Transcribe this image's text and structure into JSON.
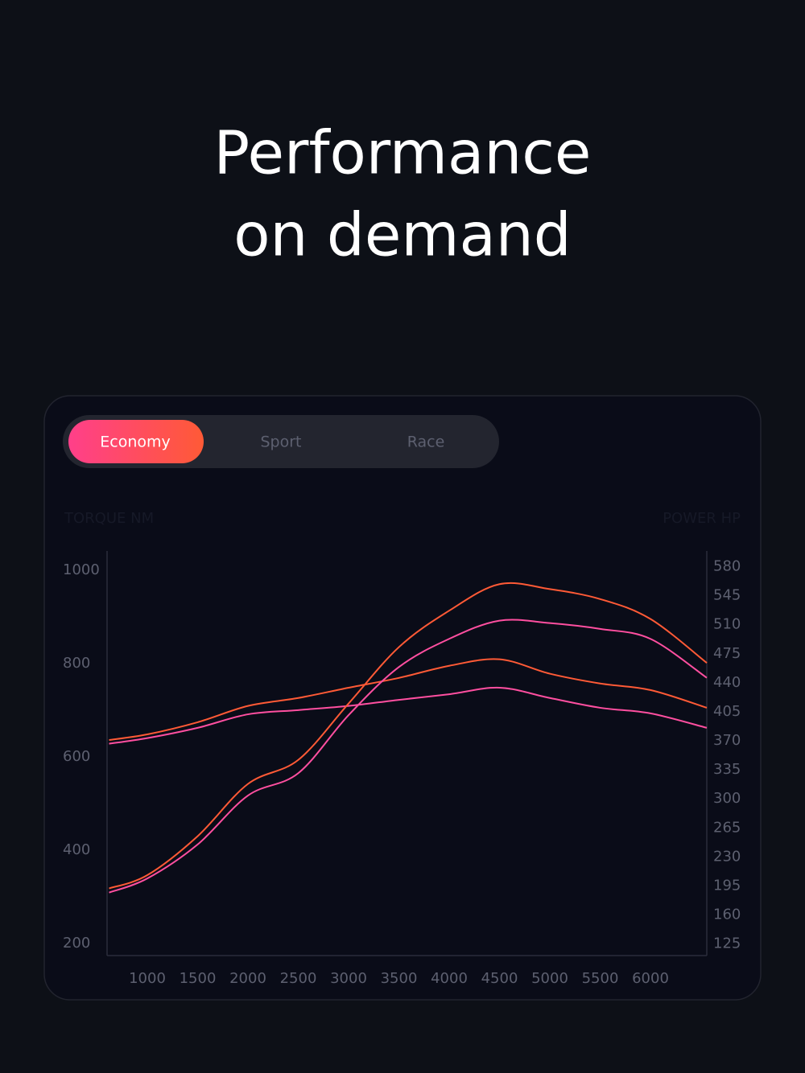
{
  "header": {
    "title_lines": [
      "Performance",
      "on demand"
    ]
  },
  "tabs": {
    "items": [
      "Economy",
      "Sport",
      "Race"
    ],
    "active": 0
  },
  "chart_data": {
    "type": "line",
    "ylabel": "TORQUE NM",
    "y2label": "POWER HP",
    "x": [
      620,
      1000,
      1500,
      2000,
      2500,
      3000,
      3500,
      4000,
      4500,
      5000,
      5500,
      6000,
      6560
    ],
    "xlim": [
      600,
      6560
    ],
    "xticks": [
      1000,
      1500,
      2000,
      2500,
      3000,
      3500,
      4000,
      4500,
      5000,
      5500,
      6000
    ],
    "ylim": [
      174,
      1041
    ],
    "yticks": [
      200,
      400,
      600,
      800,
      1000
    ],
    "y2lim": [
      111,
      599
    ],
    "y2ticks": [
      125,
      160,
      195,
      230,
      265,
      300,
      335,
      370,
      405,
      440,
      475,
      510,
      545,
      580
    ],
    "grid": false,
    "series": [
      {
        "color": "#ff5a36",
        "values": [
          636,
          648,
          674,
          709,
          726,
          748,
          769,
          795,
          809,
          778,
          757,
          743,
          705
        ]
      },
      {
        "color": "#ff4fa0",
        "values": [
          628,
          640,
          662,
          691,
          700,
          709,
          722,
          734,
          748,
          726,
          705,
          693,
          662
        ]
      },
      {
        "color": "#ff5a36",
        "axis": "y2",
        "values": [
          192,
          208,
          255,
          318,
          347,
          415,
          483,
          527,
          559,
          553,
          541,
          517,
          464
        ]
      },
      {
        "color": "#ff4fa0",
        "axis": "y2",
        "values": [
          187,
          204,
          245,
          304,
          331,
          401,
          459,
          493,
          515,
          512,
          505,
          493,
          446
        ]
      }
    ]
  }
}
